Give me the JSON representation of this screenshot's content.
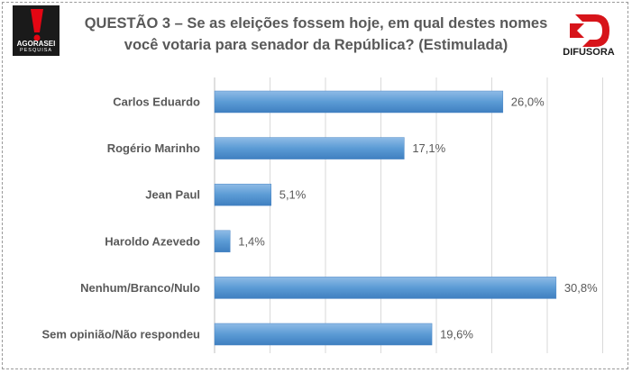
{
  "header": {
    "title_line1": "QUESTÃO 3 – Se as eleições fossem hoje, em qual destes nomes",
    "title_line2": "você votaria para senador da República? (Estimulada)",
    "logo_left_text": "AGORASEI",
    "logo_left_sub": "PESQUISA",
    "logo_right_text": "DIFUSORA",
    "colors": {
      "logo_left_red": "#e30613",
      "logo_left_black": "#1a1a1a",
      "logo_right_red": "#d7141a"
    }
  },
  "chart_data": {
    "type": "bar",
    "orientation": "horizontal",
    "categories": [
      "Carlos Eduardo",
      "Rogério Marinho",
      "Jean Paul",
      "Haroldo Azevedo",
      "Nenhum/Branco/Nulo",
      "Sem opinião/Não respondeu"
    ],
    "values": [
      26.0,
      17.1,
      5.1,
      1.4,
      30.8,
      19.6
    ],
    "data_labels": [
      "26,0%",
      "17,1%",
      "5,1%",
      "1,4%",
      "30,8%",
      "19,6%"
    ],
    "xlim": [
      0,
      35
    ],
    "grid": true,
    "bar_color": "#5b9bd5",
    "legend": "none"
  }
}
